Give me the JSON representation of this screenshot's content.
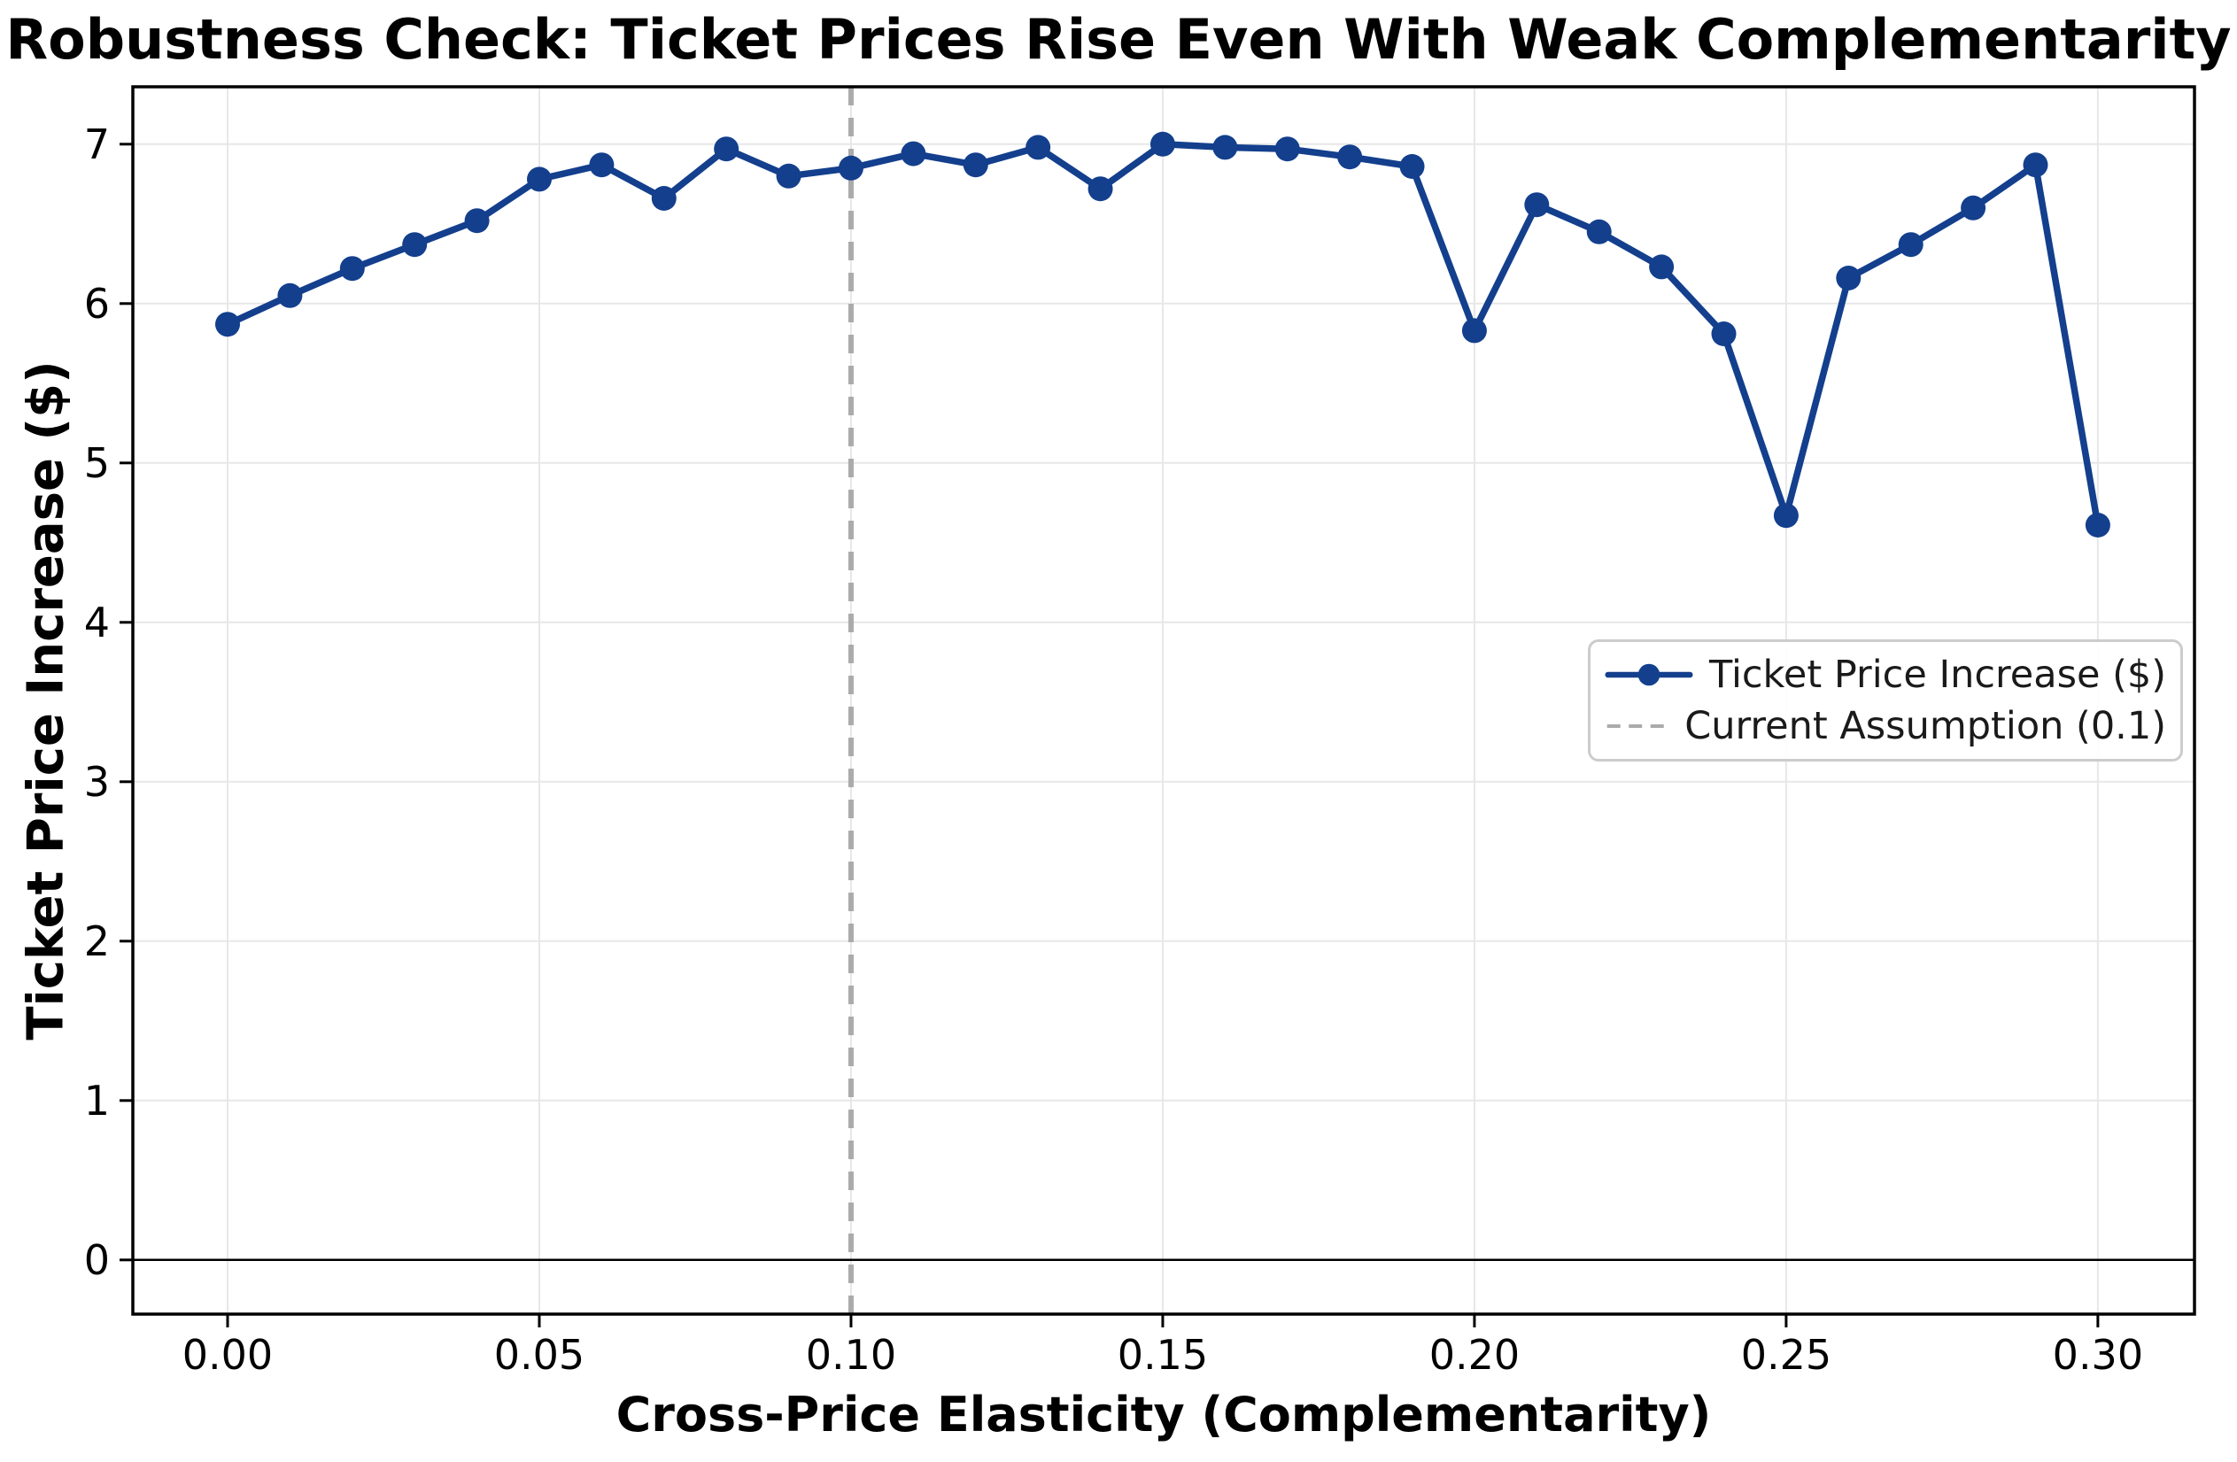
{
  "chart_data": {
    "type": "line",
    "title": "Robustness Check: Ticket Prices Rise Even With Weak Complementarity",
    "xlabel": "Cross-Price Elasticity (Complementarity)",
    "ylabel": "Ticket Price Increase ($)",
    "x": [
      0.0,
      0.01,
      0.02,
      0.03,
      0.04,
      0.05,
      0.06,
      0.07,
      0.08,
      0.09,
      0.1,
      0.11,
      0.12,
      0.13,
      0.14,
      0.15,
      0.16,
      0.17,
      0.18,
      0.19,
      0.2,
      0.21,
      0.22,
      0.23,
      0.24,
      0.25,
      0.26,
      0.27,
      0.28,
      0.29,
      0.3
    ],
    "series": [
      {
        "name": "Ticket Price Increase ($)",
        "color": "#133F8D",
        "marker": "circle",
        "values": [
          5.87,
          6.05,
          6.22,
          6.37,
          6.52,
          6.78,
          6.87,
          6.66,
          6.97,
          6.8,
          6.85,
          6.94,
          6.87,
          6.98,
          6.72,
          7.0,
          6.98,
          6.97,
          6.92,
          6.86,
          5.83,
          6.62,
          6.45,
          6.23,
          5.81,
          4.67,
          6.16,
          6.37,
          6.6,
          6.87,
          4.61
        ]
      }
    ],
    "vline": {
      "x": 0.1,
      "color": "#ABABAB",
      "style": "dashed"
    },
    "hline": {
      "y": 0,
      "color": "#000000",
      "style": "solid"
    },
    "xlim": [
      -0.0152,
      0.3155
    ],
    "ylim": [
      -0.34,
      7.36
    ],
    "xticks": {
      "values": [
        0.0,
        0.05,
        0.1,
        0.15,
        0.2,
        0.25,
        0.3
      ],
      "labels": [
        "0.00",
        "0.05",
        "0.10",
        "0.15",
        "0.20",
        "0.25",
        "0.30"
      ]
    },
    "yticks": {
      "values": [
        0,
        1,
        2,
        3,
        4,
        5,
        6,
        7
      ],
      "labels": [
        "0",
        "1",
        "2",
        "3",
        "4",
        "5",
        "6",
        "7"
      ]
    },
    "grid": true,
    "legend": {
      "position": "right-center",
      "entries": [
        {
          "label": "Ticket Price Increase ($)",
          "swatch": "line-with-marker",
          "color": "#133F8D"
        },
        {
          "label": "Current Assumption (0.1)",
          "swatch": "dashed-line",
          "color": "#ABABAB"
        }
      ]
    },
    "colors": {
      "grid": "#E7E7E7",
      "spine": "#000000",
      "background": "#FFFFFF"
    }
  }
}
